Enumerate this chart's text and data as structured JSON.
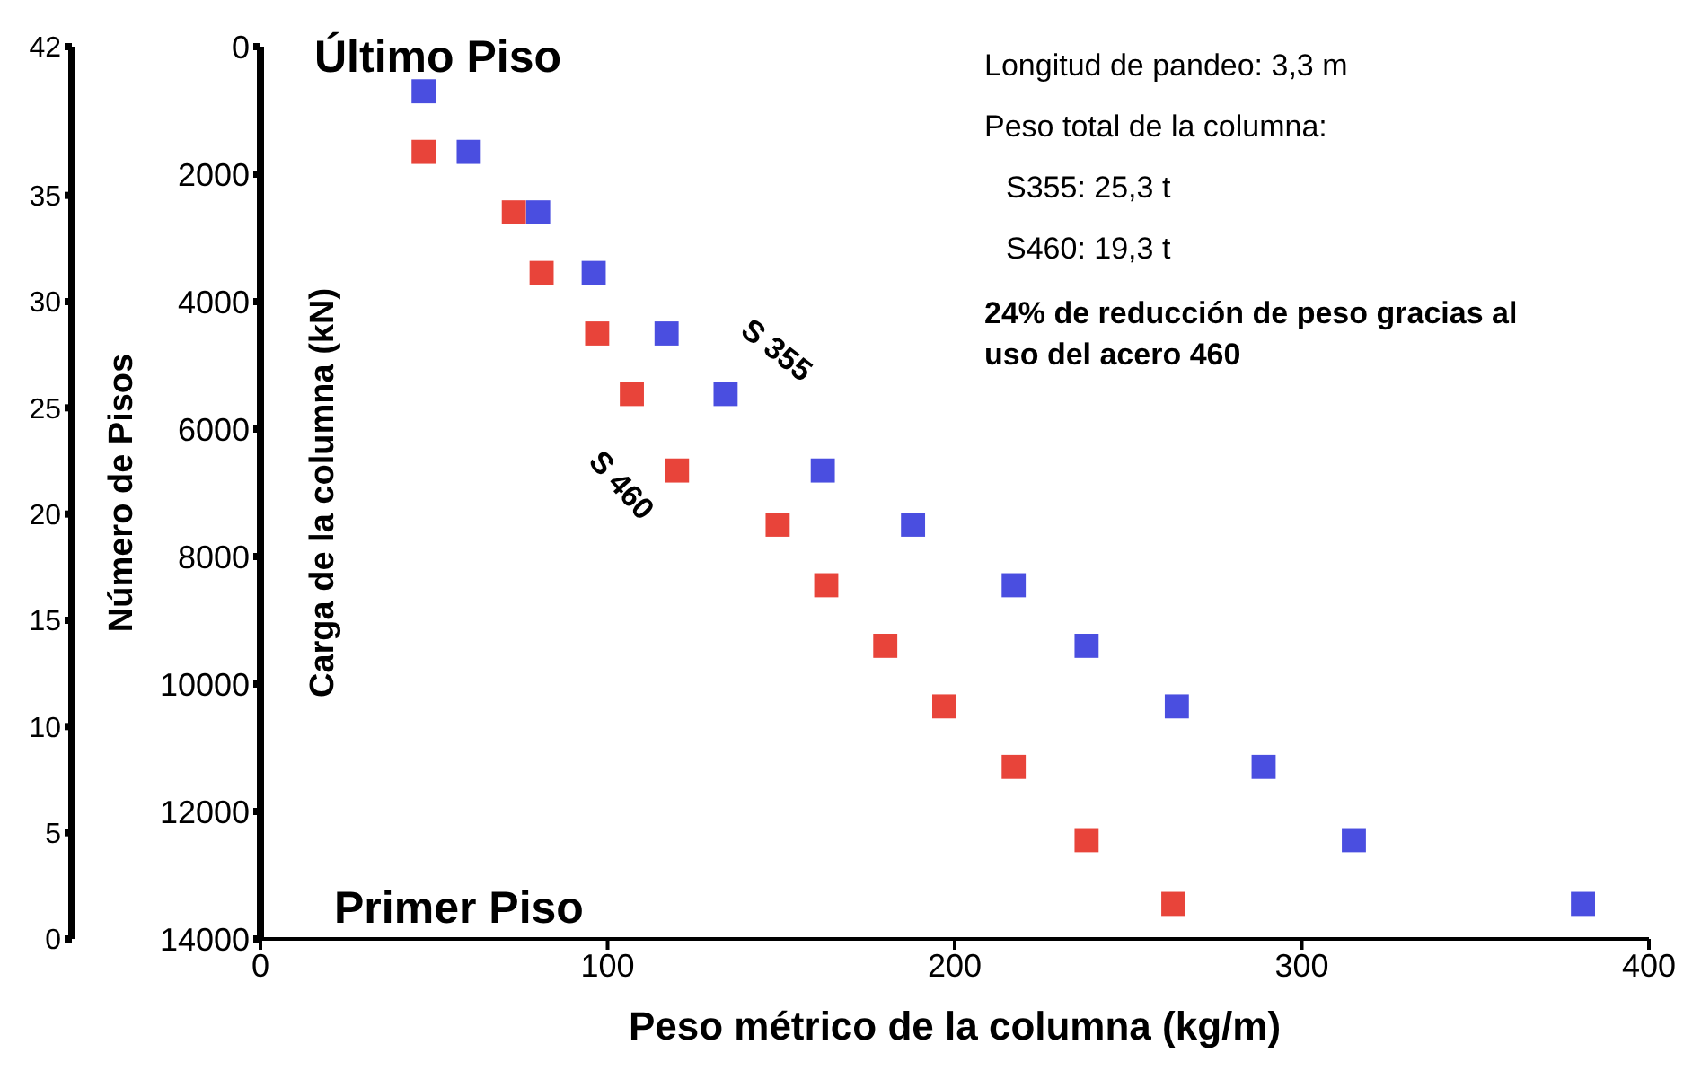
{
  "chart_data": {
    "type": "scatter",
    "xlabel": "Peso métrico de la columna (kg/m)",
    "ylabel": "Carga de la columna  (kN)",
    "y2label": "Número de Pisos",
    "xlim": [
      0,
      400
    ],
    "xticks": [
      0,
      100,
      200,
      300,
      400
    ],
    "ylim": [
      14000,
      0
    ],
    "yticks": [
      0,
      2000,
      4000,
      6000,
      8000,
      10000,
      12000,
      14000
    ],
    "y2lim": [
      0,
      42
    ],
    "y2ticks": [
      0,
      5,
      10,
      15,
      20,
      25,
      30,
      35,
      42
    ],
    "marker": "square",
    "legend": false,
    "grid": false,
    "series": [
      {
        "name": "S 355",
        "color": "#4a4ee0",
        "x": [
          47,
          60,
          80,
          96,
          117,
          134,
          162,
          188,
          217,
          238,
          264,
          289,
          315,
          381
        ],
        "values": [
          700,
          1650,
          2600,
          3550,
          4500,
          5450,
          6650,
          7500,
          8450,
          9400,
          10350,
          11300,
          12450,
          13450
        ]
      },
      {
        "name": "S 460",
        "color": "#e8443a",
        "x": [
          47,
          73,
          81,
          97,
          107,
          120,
          149,
          163,
          180,
          197,
          217,
          238,
          263
        ],
        "values": [
          1650,
          2600,
          3550,
          4500,
          5450,
          6650,
          7500,
          8450,
          9400,
          10350,
          11300,
          12450,
          13450
        ]
      }
    ],
    "annotations": [
      "Último Piso",
      "Primer Piso",
      "Longitud de pandeo: 3,3 m",
      "Peso total de la columna:",
      "S355: 25,3 t",
      "S460: 19,3 t",
      "24% de reducción de peso gracias al uso del acero 460"
    ]
  }
}
